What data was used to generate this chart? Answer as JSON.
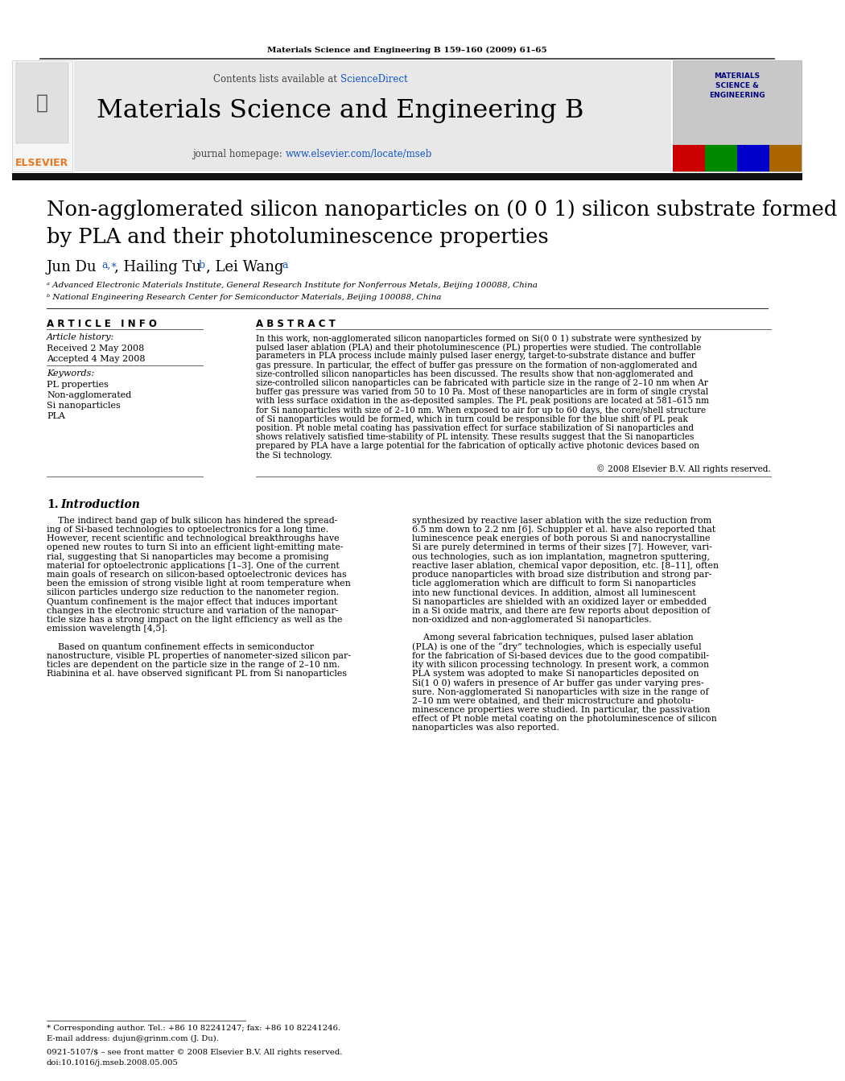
{
  "page_title": "Materials Science and Engineering B 159–160 (2009) 61–65",
  "journal_name": "Materials Science and Engineering B",
  "journal_homepage_label": "journal homepage: ",
  "journal_homepage_url": "www.elsevier.com/locate/mseb",
  "sciencedirect_label": "Contents lists available at ",
  "sciencedirect_url": "ScienceDirect",
  "article_title_line1": "Non-agglomerated silicon nanoparticles on (0 0 1) silicon substrate formed",
  "article_title_line2": "by PLA and their photoluminescence properties",
  "affil_a": "ᵃ Advanced Electronic Materials Institute, General Research Institute for Nonferrous Metals, Beijing 100088, China",
  "affil_b": "ᵇ National Engineering Research Center for Semiconductor Materials, Beijing 100088, China",
  "article_info_title": "A R T I C L E   I N F O",
  "abstract_title": "A B S T R A C T",
  "article_history_label": "Article history:",
  "received": "Received 2 May 2008",
  "accepted": "Accepted 4 May 2008",
  "keywords_label": "Keywords:",
  "keywords": [
    "PL properties",
    "Non-agglomerated",
    "Si nanoparticles",
    "PLA"
  ],
  "abstract_lines": [
    "In this work, non-agglomerated silicon nanoparticles formed on Si(0 0 1) substrate were synthesized by",
    "pulsed laser ablation (PLA) and their photoluminescence (PL) properties were studied. The controllable",
    "parameters in PLA process include mainly pulsed laser energy, target-to-substrate distance and buffer",
    "gas pressure. In particular, the effect of buffer gas pressure on the formation of non-agglomerated and",
    "size-controlled silicon nanoparticles has been discussed. The results show that non-agglomerated and",
    "size-controlled silicon nanoparticles can be fabricated with particle size in the range of 2–10 nm when Ar",
    "buffer gas pressure was varied from 50 to 10 Pa. Most of these nanoparticles are in form of single crystal",
    "with less surface oxidation in the as-deposited samples. The PL peak positions are located at 581–615 nm",
    "for Si nanoparticles with size of 2–10 nm. When exposed to air for up to 60 days, the core/shell structure",
    "of Si nanoparticles would be formed, which in turn could be responsible for the blue shift of PL peak",
    "position. Pt noble metal coating has passivation effect for surface stabilization of Si nanoparticles and",
    "shows relatively satisfied time-stability of PL intensity. These results suggest that the Si nanoparticles",
    "prepared by PLA have a large potential for the fabrication of optically active photonic devices based on",
    "the Si technology."
  ],
  "copyright": "© 2008 Elsevier B.V. All rights reserved.",
  "intro_col1_lines": [
    "    The indirect band gap of bulk silicon has hindered the spread-",
    "ing of Si-based technologies to optoelectronics for a long time.",
    "However, recent scientific and technological breakthroughs have",
    "opened new routes to turn Si into an efficient light-emitting mate-",
    "rial, suggesting that Si nanoparticles may become a promising",
    "material for optoelectronic applications [1–3]. One of the current",
    "main goals of research on silicon-based optoelectronic devices has",
    "been the emission of strong visible light at room temperature when",
    "silicon particles undergo size reduction to the nanometer region.",
    "Quantum confinement is the major effect that induces important",
    "changes in the electronic structure and variation of the nanopar-",
    "ticle size has a strong impact on the light efficiency as well as the",
    "emission wavelength [4,5].",
    "",
    "    Based on quantum confinement effects in semiconductor",
    "nanostructure, visible PL properties of nanometer-sized silicon par-",
    "ticles are dependent on the particle size in the range of 2–10 nm.",
    "Riabinina et al. have observed significant PL from Si nanoparticles"
  ],
  "intro_col2_lines": [
    "synthesized by reactive laser ablation with the size reduction from",
    "6.5 nm down to 2.2 nm [6]. Schuppler et al. have also reported that",
    "luminescence peak energies of both porous Si and nanocrystalline",
    "Si are purely determined in terms of their sizes [7]. However, vari-",
    "ous technologies, such as ion implantation, magnetron sputtering,",
    "reactive laser ablation, chemical vapor deposition, etc. [8–11], often",
    "produce nanoparticles with broad size distribution and strong par-",
    "ticle agglomeration which are difficult to form Si nanoparticles",
    "into new functional devices. In addition, almost all luminescent",
    "Si nanoparticles are shielded with an oxidized layer or embedded",
    "in a Si oxide matrix, and there are few reports about deposition of",
    "non-oxidized and non-agglomerated Si nanoparticles.",
    "",
    "    Among several fabrication techniques, pulsed laser ablation",
    "(PLA) is one of the “dry” technologies, which is especially useful",
    "for the fabrication of Si-based devices due to the good compatibil-",
    "ity with silicon processing technology. In present work, a common",
    "PLA system was adopted to make Si nanoparticles deposited on",
    "Si(1 0 0) wafers in presence of Ar buffer gas under varying pres-",
    "sure. Non-agglomerated Si nanoparticles with size in the range of",
    "2–10 nm were obtained, and their microstructure and photolu-",
    "minescence properties were studied. In particular, the passivation",
    "effect of Pt noble metal coating on the photoluminescence of silicon",
    "nanoparticles was also reported."
  ],
  "footnote_star": "* Corresponding author. Tel.: +86 10 82241247; fax: +86 10 82241246.",
  "footnote_email": "E-mail address: dujun@grinm.com (J. Du).",
  "issn_line": "0921-5107/$ – see front matter © 2008 Elsevier B.V. All rights reserved.",
  "doi_line": "doi:10.1016/j.mseb.2008.05.005",
  "bg_color": "#ffffff",
  "header_bg": "#e8e8e8",
  "header_bar_color": "#111111",
  "orange_color": "#e87722",
  "blue_link_color": "#1155cc",
  "dark_red": "#990000"
}
